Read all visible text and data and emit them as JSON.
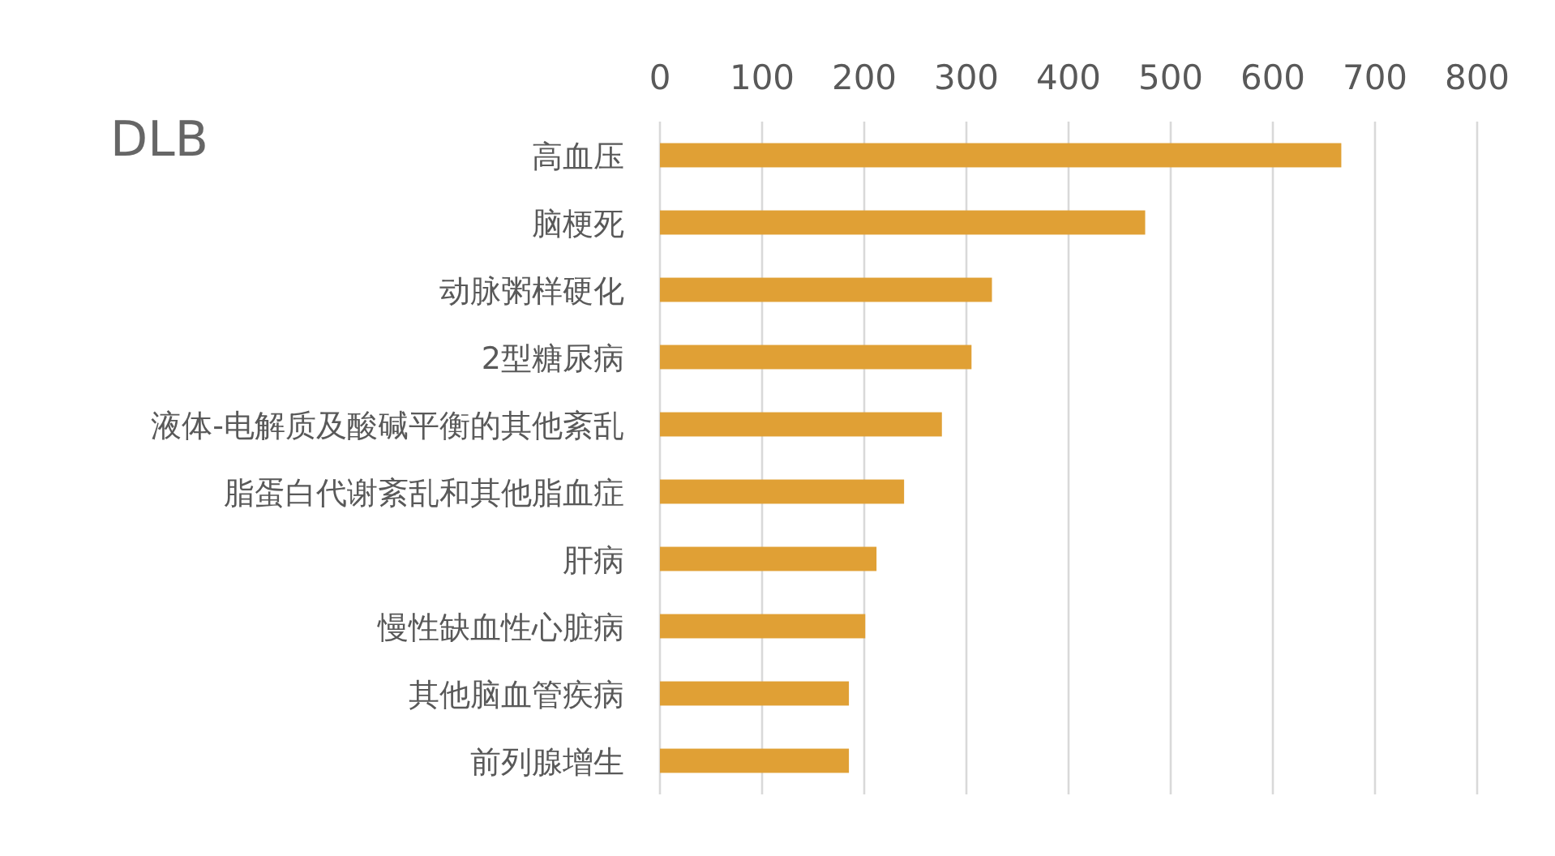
{
  "chart_data": {
    "type": "bar",
    "orientation": "horizontal",
    "title": "DLB",
    "categories": [
      "高血压",
      "脑梗死",
      "动脉粥样硬化",
      "2型糖尿病",
      "液体-电解质及酸碱平衡的其他紊乱",
      "脂蛋白代谢紊乱和其他脂血症",
      "肝病",
      "慢性缺血性心脏病",
      "其他脑血管疾病",
      "前列腺增生"
    ],
    "values": [
      667,
      475,
      325,
      305,
      276,
      239,
      212,
      201,
      185,
      185
    ],
    "color": "#e0a035",
    "xlim": [
      0,
      800
    ],
    "xticks": [
      0,
      100,
      200,
      300,
      400,
      500,
      600,
      700,
      800
    ],
    "grid": "x"
  }
}
